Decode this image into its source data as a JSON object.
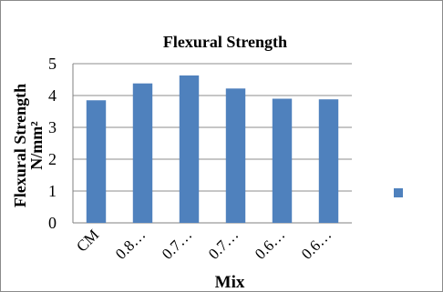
{
  "chart_data": {
    "type": "bar",
    "title": "Flexural Strength",
    "xlabel": "Mix",
    "ylabel_line1": "Flexural Strength",
    "ylabel_line2": "N/mm²",
    "categories": [
      "CM",
      "0.8…",
      "0.7…",
      "0.7…",
      "0.6…",
      "0.6…"
    ],
    "values": [
      3.85,
      4.38,
      4.63,
      4.22,
      3.9,
      3.88
    ],
    "ylim": [
      0,
      5
    ],
    "yticks": [
      "0",
      "1",
      "2",
      "3",
      "4",
      "5"
    ],
    "grid": true,
    "legend_position": "right",
    "bar_color": "#4f81bd"
  }
}
